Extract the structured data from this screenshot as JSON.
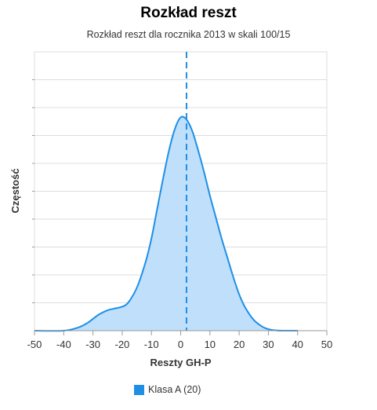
{
  "colors": {
    "series": "#1f8fe6",
    "fill": "#bfdffb",
    "grid": "#dddddd",
    "axis": "#999999",
    "marker": "#1f8fe6"
  },
  "chart_data": {
    "type": "area",
    "title": "Rozkład reszt",
    "subtitle": "Rozkład reszt dla rocznika 2013 w skali 100/15",
    "xlabel": "Reszty GH-P",
    "ylabel": "Częstość",
    "xlim": [
      -50,
      50
    ],
    "xticks": [
      -50,
      -40,
      -30,
      -20,
      -10,
      0,
      10,
      20,
      30,
      40,
      50
    ],
    "ylim": [
      0,
      1
    ],
    "y_tick_labels_shown": false,
    "grid": true,
    "legend_position": "bottom-center",
    "vertical_line": {
      "x": 2,
      "style": "dashed"
    },
    "series": [
      {
        "name": "Klasa A (20)",
        "x": [
          -50,
          -40,
          -35,
          -32,
          -30,
          -28,
          -25,
          -22,
          -20,
          -18,
          -15,
          -12,
          -10,
          -8,
          -6,
          -4,
          -2,
          0,
          2,
          4,
          6,
          8,
          10,
          12,
          14,
          16,
          18,
          20,
          22,
          25,
          28,
          30,
          32,
          35,
          38,
          40
        ],
        "values": [
          0.0,
          0.0,
          0.015,
          0.035,
          0.055,
          0.075,
          0.095,
          0.105,
          0.112,
          0.13,
          0.2,
          0.32,
          0.43,
          0.57,
          0.71,
          0.84,
          0.94,
          0.995,
          0.985,
          0.93,
          0.84,
          0.74,
          0.63,
          0.53,
          0.43,
          0.34,
          0.25,
          0.17,
          0.11,
          0.05,
          0.018,
          0.007,
          0.002,
          0.0,
          0.0,
          0.0
        ]
      }
    ]
  }
}
